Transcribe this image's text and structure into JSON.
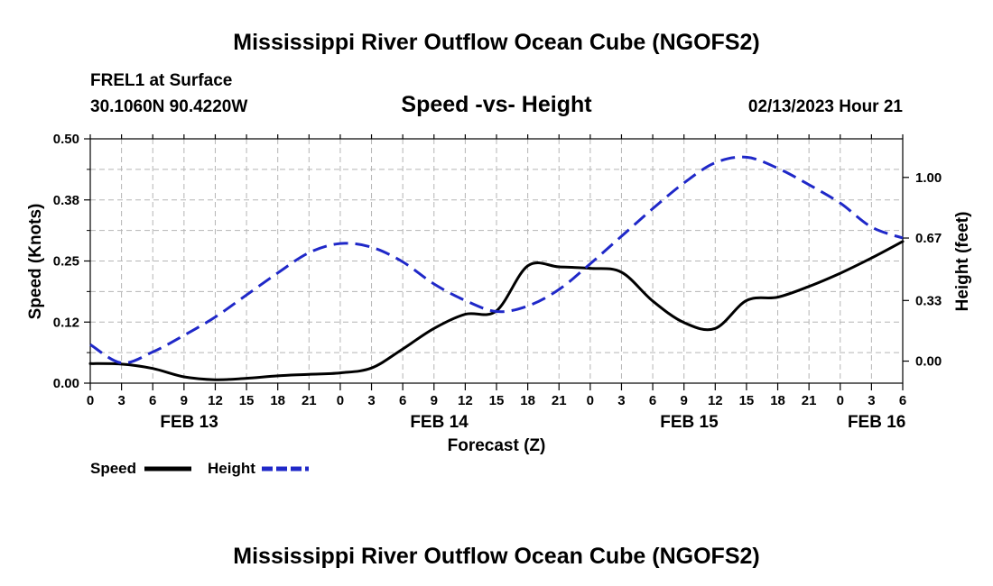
{
  "header": {
    "title": "Mississippi River Outflow Ocean Cube (NGOFS2)",
    "station": "FREL1 at Surface",
    "coords": "30.1060N  90.4220W",
    "plot_title": "Speed -vs- Height",
    "datetime": "02/13/2023 Hour 21"
  },
  "footer": {
    "title": "Mississippi River Outflow Ocean Cube (NGOFS2)"
  },
  "chart_data": {
    "type": "line",
    "xlabel": "Forecast (Z)",
    "ylabel_left": "Speed (Knots)",
    "ylabel_right": "Height (feet)",
    "x_unit": "forecast hours from FEB 13 00Z",
    "xlim": [
      0,
      78
    ],
    "ylim_left": [
      0,
      0.5
    ],
    "ylim_right": [
      -0.12,
      1.21
    ],
    "x_tick_labels": [
      "0",
      "3",
      "6",
      "9",
      "12",
      "15",
      "18",
      "21",
      "0",
      "3",
      "6",
      "9",
      "12",
      "15",
      "18",
      "21",
      "0",
      "3",
      "6",
      "9",
      "12",
      "15",
      "18",
      "21",
      "0",
      "3",
      "6"
    ],
    "day_labels": [
      {
        "label": "FEB 13",
        "x": 9.5
      },
      {
        "label": "FEB 14",
        "x": 33.5
      },
      {
        "label": "FEB 15",
        "x": 57.5
      },
      {
        "label": "FEB 16",
        "x": 75.5
      }
    ],
    "left_ticks": [
      "0.00",
      "0.12",
      "0.25",
      "0.38",
      "0.50"
    ],
    "left_tick_values": [
      0,
      0.125,
      0.25,
      0.375,
      0.5
    ],
    "right_ticks": [
      "0.00",
      "0.33",
      "0.67",
      "1.00"
    ],
    "right_tick_values": [
      0,
      0.33,
      0.67,
      1.0
    ],
    "series": [
      {
        "name": "Speed",
        "axis": "left",
        "color": "#000000",
        "style": "solid",
        "x": [
          0,
          3,
          6,
          9,
          12,
          15,
          18,
          21,
          24,
          27,
          30,
          33,
          36,
          39,
          42,
          45,
          48,
          51,
          54,
          57,
          60,
          63,
          66,
          69,
          72,
          75,
          78
        ],
        "values": [
          0.04,
          0.039,
          0.03,
          0.013,
          0.007,
          0.01,
          0.015,
          0.018,
          0.021,
          0.031,
          0.07,
          0.112,
          0.141,
          0.148,
          0.24,
          0.238,
          0.235,
          0.227,
          0.168,
          0.124,
          0.112,
          0.169,
          0.176,
          0.198,
          0.225,
          0.256,
          0.29
        ]
      },
      {
        "name": "Height",
        "axis": "right",
        "color": "#1f28c8",
        "style": "dashed",
        "x": [
          0,
          3,
          6,
          9,
          12,
          15,
          18,
          21,
          24,
          27,
          30,
          33,
          36,
          39,
          42,
          45,
          48,
          51,
          54,
          57,
          60,
          63,
          66,
          69,
          72,
          75,
          78
        ],
        "values": [
          0.09,
          -0.01,
          0.05,
          0.14,
          0.24,
          0.36,
          0.48,
          0.59,
          0.64,
          0.62,
          0.54,
          0.42,
          0.33,
          0.27,
          0.3,
          0.39,
          0.53,
          0.68,
          0.83,
          0.97,
          1.08,
          1.11,
          1.05,
          0.96,
          0.86,
          0.73,
          0.67
        ]
      }
    ]
  }
}
